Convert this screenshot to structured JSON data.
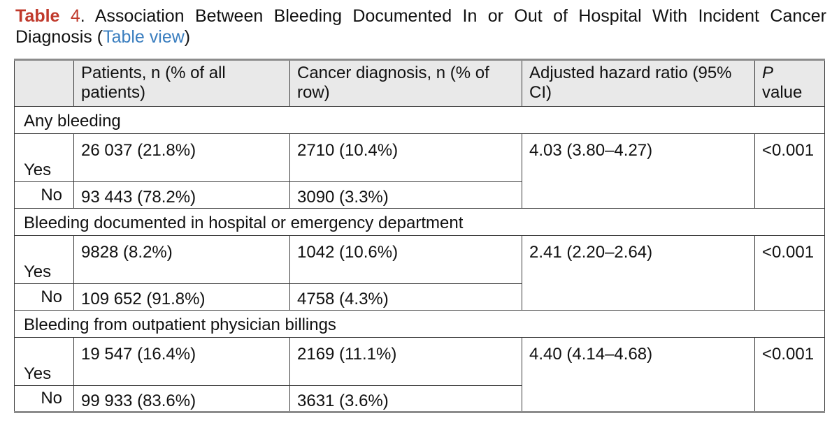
{
  "caption": {
    "label": "Table",
    "number": "4",
    "sep": ".",
    "title": " Association Between Bleeding Documented In or Out of Hospital With Incident Cancer Diagnosis (",
    "link_text": "Table view",
    "close": ")"
  },
  "table": {
    "headers": {
      "patients": "Patients, n (% of all patients)",
      "cancer": "Cancer diagnosis, n (% of row)",
      "hr": "Adjusted hazard ratio (95% CI)",
      "p_italic": "P",
      "p_rest": "value"
    },
    "sections": [
      {
        "title": "Any bleeding",
        "yes_label": "Yes",
        "no_label": "No",
        "yes_patients": "26 037 (21.8%)",
        "yes_cancer": "2710 (10.4%)",
        "no_patients": "93 443 (78.2%)",
        "no_cancer": "3090 (3.3%)",
        "hr": "4.03 (3.80–4.27)",
        "p": "<0.001"
      },
      {
        "title": "Bleeding documented in hospital or emergency department",
        "yes_label": "Yes",
        "no_label": "No",
        "yes_patients": "9828 (8.2%)",
        "yes_cancer": "1042 (10.6%)",
        "no_patients": "109 652 (91.8%)",
        "no_cancer": "4758 (4.3%)",
        "hr": "2.41 (2.20–2.64)",
        "p": "<0.001"
      },
      {
        "title": "Bleeding from outpatient physician billings",
        "yes_label": "Yes",
        "no_label": "No",
        "yes_patients": "19 547 (16.4%)",
        "yes_cancer": "2169 (11.1%)",
        "no_patients": "99 933 (83.6%)",
        "no_cancer": "3631 (3.6%)",
        "hr": "4.40 (4.14–4.68)",
        "p": "<0.001"
      }
    ]
  }
}
